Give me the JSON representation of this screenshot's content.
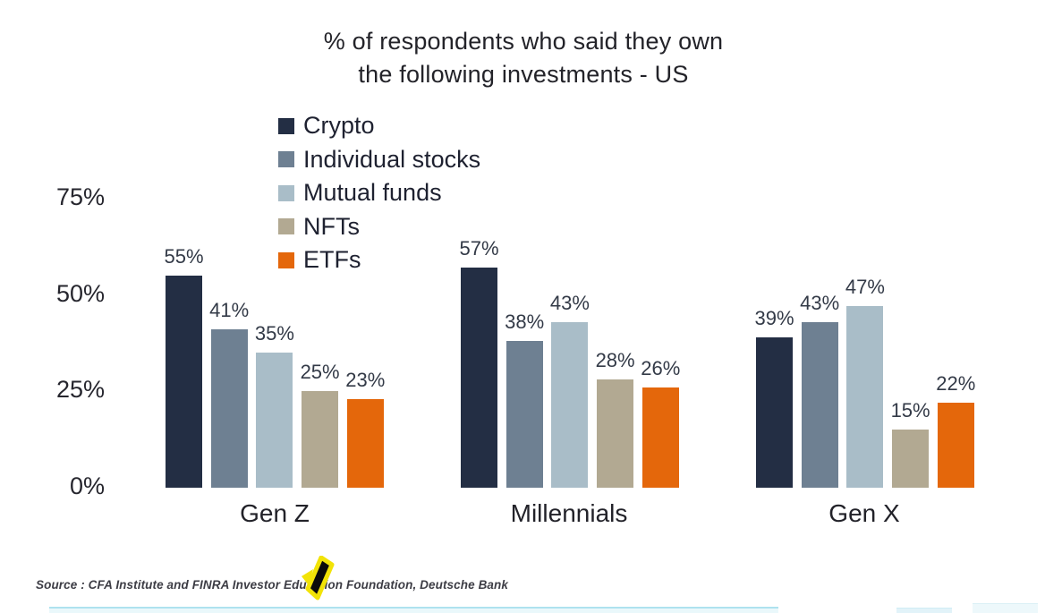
{
  "header": {
    "title_line1": "% of respondents who said they own",
    "title_line2": "the following investments - US"
  },
  "chart_data": {
    "type": "bar",
    "title": "% of respondents who said they own the following investments - US",
    "categories": [
      "Gen Z",
      "Millennials",
      "Gen X"
    ],
    "series": [
      {
        "name": "Crypto",
        "color": "#232e44",
        "values": [
          55,
          57,
          39
        ]
      },
      {
        "name": "Individual stocks",
        "color": "#6e8092",
        "values": [
          41,
          38,
          43
        ]
      },
      {
        "name": "Mutual funds",
        "color": "#a9bdc8",
        "values": [
          35,
          43,
          47
        ]
      },
      {
        "name": "NFTs",
        "color": "#b2a992",
        "values": [
          25,
          28,
          15
        ]
      },
      {
        "name": "ETFs",
        "color": "#e4670b",
        "values": [
          23,
          26,
          22
        ]
      }
    ],
    "value_label_suffix": "%",
    "y_axis": {
      "ticks": [
        {
          "label": "75%",
          "value": 75
        },
        {
          "label": "50%",
          "value": 50
        },
        {
          "label": "25%",
          "value": 25
        },
        {
          "label": "0%",
          "value": 0
        }
      ]
    },
    "ylim": [
      0,
      80
    ],
    "grid": false,
    "legend_position": "top-center-vertical",
    "value_labels": true
  },
  "footer": {
    "source": "Source : CFA Institute and FINRA Investor Education Foundation, Deutsche Bank"
  },
  "overlay": {
    "cursor_highlight_color": "#f2e307",
    "cursor_color": "#0b0b0b"
  }
}
